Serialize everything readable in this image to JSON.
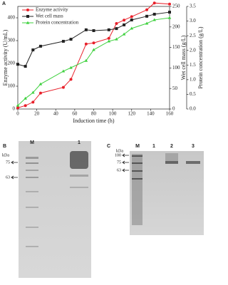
{
  "chart_data": {
    "type": "line",
    "panel_label": "A",
    "xlabel": "Induction time (h)",
    "ylabel": "Enzyme activity (U/mL)",
    "y2label": "Wet cell mass (g/L)",
    "y3label": "Protein concentration (g/L)",
    "x": [
      0,
      8,
      16,
      24,
      48,
      56,
      72,
      80,
      96,
      104,
      112,
      120,
      136,
      144,
      160
    ],
    "xlim": [
      0,
      160
    ],
    "xticks": [
      0,
      20,
      40,
      60,
      80,
      100,
      120,
      140,
      160
    ],
    "ylim": [
      0,
      450
    ],
    "yticks": [
      0,
      100,
      200,
      300,
      400
    ],
    "y2lim": [
      0,
      250
    ],
    "y2ticks": [
      0,
      50,
      100,
      150,
      200,
      250
    ],
    "y3lim": [
      0,
      3.5
    ],
    "y3ticks": [
      {
        "value": 0,
        "label": "0.0"
      },
      0.5,
      {
        "value": 1,
        "label": "1.0"
      },
      1.5,
      {
        "value": 2,
        "label": "2.0"
      },
      2.5,
      {
        "value": 3,
        "label": "3.0"
      },
      3.5
    ],
    "legend": "upper left",
    "series": [
      {
        "name": "Enzyme activity",
        "color": "#e8202a",
        "marker": "circle",
        "axis": "y",
        "values": [
          5,
          15,
          30,
          70,
          95,
          130,
          285,
          290,
          310,
          375,
          390,
          405,
          435,
          465,
          460
        ]
      },
      {
        "name": "Wet cell mass",
        "color": "#222222",
        "marker": "square",
        "axis": "y2",
        "values": [
          109,
          104,
          144,
          153,
          165,
          170,
          193,
          191,
          193,
          196,
          205,
          217,
          226,
          231,
          236
        ]
      },
      {
        "name": "Protein concentration",
        "color": "#3fd13f",
        "marker": "triangle",
        "axis": "y3",
        "values": [
          0.12,
          0.36,
          0.56,
          0.85,
          1.29,
          1.41,
          1.65,
          2.02,
          2.31,
          2.38,
          2.55,
          2.75,
          2.92,
          3.04,
          3.11
        ]
      }
    ]
  },
  "gels": [
    {
      "panel_label": "B",
      "unit": "kDa",
      "lanes": [
        "M",
        "1"
      ],
      "markers": [
        75,
        63
      ]
    },
    {
      "panel_label": "C",
      "unit": "kDa",
      "lanes": [
        "M",
        "1",
        "2",
        "3"
      ],
      "markers": [
        100,
        75,
        63
      ]
    }
  ]
}
